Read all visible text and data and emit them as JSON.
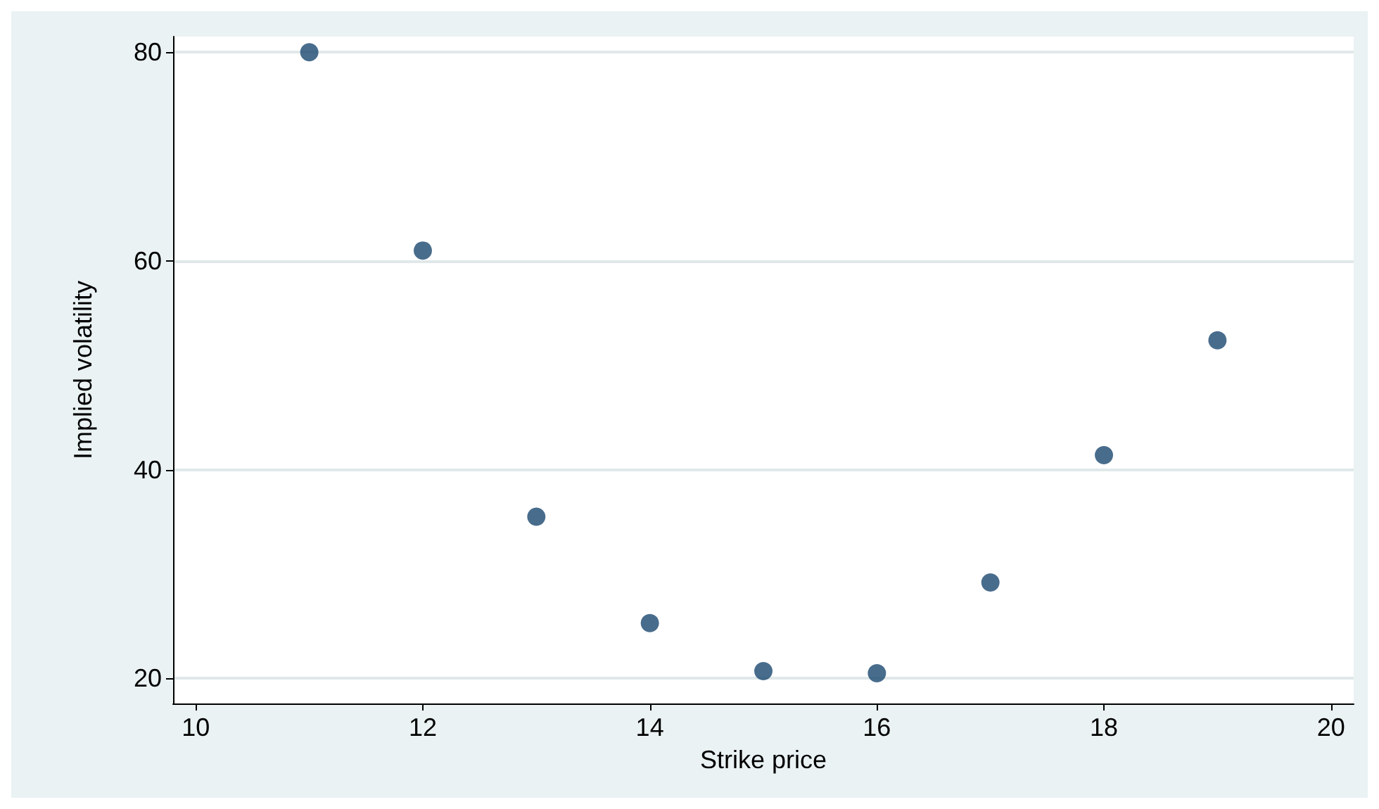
{
  "chart_data": {
    "type": "scatter",
    "xlabel": "Strike price",
    "ylabel": "Implied volatility",
    "x": [
      11,
      12,
      13,
      14,
      15,
      16,
      17,
      18,
      19
    ],
    "values": [
      80,
      61,
      35.5,
      25.3,
      20.7,
      20.5,
      29.2,
      41.4,
      52.4
    ],
    "color": "#1a476f",
    "marker": "circle",
    "grid": "y",
    "xlim": [
      9.8,
      20.2
    ],
    "xticks": [
      10,
      12,
      14,
      16,
      18,
      20
    ],
    "ylim": [
      17.6,
      81.5
    ],
    "yticks": [
      20,
      40,
      60,
      80
    ]
  }
}
